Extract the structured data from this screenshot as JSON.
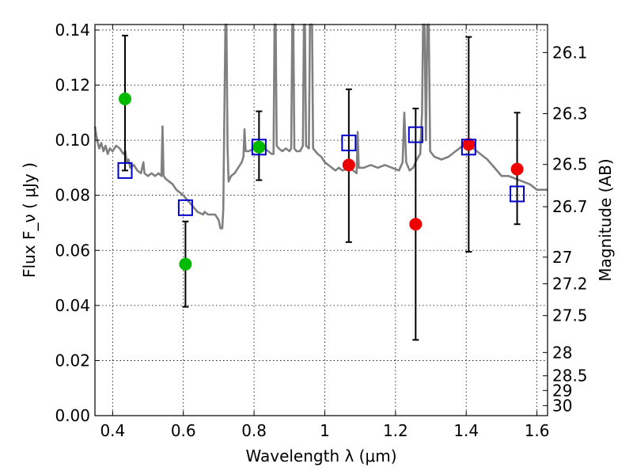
{
  "chart_data": {
    "type": "scatter",
    "title": "",
    "xlabel": "Wavelength  λ (μm)",
    "ylabel": "Flux  F_ν  ( μJy )",
    "ylabel_right": "Magnitude (AB)",
    "xlim": [
      0.35,
      1.63
    ],
    "ylim": [
      0.0,
      0.142
    ],
    "grid": true,
    "x_ticks": [
      0.4,
      0.6,
      0.8,
      1.0,
      1.2,
      1.4,
      1.6
    ],
    "x_tick_labels": [
      "0.4",
      "0.6",
      "0.8",
      "1",
      "1.2",
      "1.4",
      "1.6"
    ],
    "y_ticks": [
      0.0,
      0.02,
      0.04,
      0.06,
      0.08,
      0.1,
      0.12,
      0.14
    ],
    "y_tick_labels": [
      "0.00",
      "0.02",
      "0.04",
      "0.06",
      "0.08",
      "0.10",
      "0.12",
      "0.14"
    ],
    "right_tick_labels": [
      "26.1",
      "26.3",
      "26.5",
      "26.7",
      "27",
      "27.2",
      "27.5",
      "28",
      "28.5",
      "29",
      "30"
    ],
    "colors": {
      "green": "#00bb00",
      "red": "#ee0000",
      "blue_square": "#0000cc",
      "model": "#808080",
      "errorbar": "#000000"
    },
    "series": [
      {
        "marker": "circle",
        "color": "#00bb00",
        "points": [
          {
            "x": 0.435,
            "y": 0.115
          },
          {
            "x": 0.606,
            "y": 0.055
          },
          {
            "x": 0.814,
            "y": 0.0975
          }
        ]
      },
      {
        "marker": "circle",
        "color": "#ee0000",
        "points": [
          {
            "x": 1.068,
            "y": 0.091
          },
          {
            "x": 1.257,
            "y": 0.0695
          },
          {
            "x": 1.407,
            "y": 0.0985
          },
          {
            "x": 1.544,
            "y": 0.0895
          }
        ]
      },
      {
        "marker": "square",
        "color": "#0000cc",
        "points": [
          {
            "x": 0.435,
            "y": 0.089
          },
          {
            "x": 0.606,
            "y": 0.0755
          },
          {
            "x": 0.814,
            "y": 0.0975
          },
          {
            "x": 1.068,
            "y": 0.099
          },
          {
            "x": 1.257,
            "y": 0.102
          },
          {
            "x": 1.407,
            "y": 0.0975
          },
          {
            "x": 1.544,
            "y": 0.0805
          }
        ]
      }
    ],
    "error_bars": [
      {
        "x": 0.435,
        "low": 0.089,
        "high": 0.138
      },
      {
        "x": 0.606,
        "low": 0.0395,
        "high": 0.0705
      },
      {
        "x": 0.814,
        "low": 0.0855,
        "high": 0.1105
      },
      {
        "x": 1.068,
        "low": 0.063,
        "high": 0.1185
      },
      {
        "x": 1.257,
        "low": 0.0275,
        "high": 0.1115
      },
      {
        "x": 1.407,
        "low": 0.0595,
        "high": 0.1375
      },
      {
        "x": 1.544,
        "low": 0.0695,
        "high": 0.11
      }
    ],
    "model_spectrum": [
      [
        0.35,
        0.105
      ],
      [
        0.356,
        0.1
      ],
      [
        0.362,
        0.097
      ],
      [
        0.368,
        0.099
      ],
      [
        0.374,
        0.096
      ],
      [
        0.38,
        0.098
      ],
      [
        0.386,
        0.095
      ],
      [
        0.392,
        0.097
      ],
      [
        0.4,
        0.096
      ],
      [
        0.41,
        0.098
      ],
      [
        0.42,
        0.097
      ],
      [
        0.43,
        0.095
      ],
      [
        0.436,
        0.096
      ],
      [
        0.44,
        0.092
      ],
      [
        0.445,
        0.093
      ],
      [
        0.45,
        0.09
      ],
      [
        0.46,
        0.091
      ],
      [
        0.47,
        0.089
      ],
      [
        0.48,
        0.088
      ],
      [
        0.487,
        0.092
      ],
      [
        0.49,
        0.088
      ],
      [
        0.5,
        0.087
      ],
      [
        0.51,
        0.088
      ],
      [
        0.52,
        0.087
      ],
      [
        0.53,
        0.088
      ],
      [
        0.538,
        0.087
      ],
      [
        0.541,
        0.105
      ],
      [
        0.544,
        0.087
      ],
      [
        0.55,
        0.086
      ],
      [
        0.56,
        0.085
      ],
      [
        0.57,
        0.084
      ],
      [
        0.58,
        0.082
      ],
      [
        0.59,
        0.081
      ],
      [
        0.6,
        0.08
      ],
      [
        0.62,
        0.077
      ],
      [
        0.64,
        0.074
      ],
      [
        0.656,
        0.073
      ],
      [
        0.66,
        0.074
      ],
      [
        0.67,
        0.073
      ],
      [
        0.68,
        0.073
      ],
      [
        0.69,
        0.073
      ],
      [
        0.7,
        0.071
      ],
      [
        0.705,
        0.068
      ],
      [
        0.71,
        0.068
      ],
      [
        0.713,
        0.075
      ],
      [
        0.716,
        0.11
      ],
      [
        0.719,
        0.142
      ],
      [
        0.722,
        0.142
      ],
      [
        0.725,
        0.097
      ],
      [
        0.728,
        0.085
      ],
      [
        0.735,
        0.087
      ],
      [
        0.745,
        0.088
      ],
      [
        0.755,
        0.09
      ],
      [
        0.765,
        0.092
      ],
      [
        0.77,
        0.094
      ],
      [
        0.773,
        0.104
      ],
      [
        0.776,
        0.096
      ],
      [
        0.785,
        0.096
      ],
      [
        0.8,
        0.097
      ],
      [
        0.81,
        0.097
      ],
      [
        0.82,
        0.097
      ],
      [
        0.83,
        0.097
      ],
      [
        0.84,
        0.096
      ],
      [
        0.85,
        0.095
      ],
      [
        0.855,
        0.095
      ],
      [
        0.858,
        0.142
      ],
      [
        0.861,
        0.142
      ],
      [
        0.864,
        0.098
      ],
      [
        0.87,
        0.097
      ],
      [
        0.88,
        0.096
      ],
      [
        0.89,
        0.097
      ],
      [
        0.9,
        0.096
      ],
      [
        0.905,
        0.097
      ],
      [
        0.908,
        0.142
      ],
      [
        0.911,
        0.142
      ],
      [
        0.914,
        0.097
      ],
      [
        0.92,
        0.096
      ],
      [
        0.93,
        0.096
      ],
      [
        0.938,
        0.098
      ],
      [
        0.941,
        0.142
      ],
      [
        0.944,
        0.142
      ],
      [
        0.947,
        0.098
      ],
      [
        0.955,
        0.097
      ],
      [
        0.958,
        0.142
      ],
      [
        0.961,
        0.142
      ],
      [
        0.964,
        0.142
      ],
      [
        0.967,
        0.097
      ],
      [
        0.98,
        0.095
      ],
      [
        0.99,
        0.094
      ],
      [
        1.0,
        0.092
      ],
      [
        1.01,
        0.091
      ],
      [
        1.02,
        0.09
      ],
      [
        1.03,
        0.089
      ],
      [
        1.04,
        0.09
      ],
      [
        1.05,
        0.089
      ],
      [
        1.07,
        0.09
      ],
      [
        1.09,
        0.088
      ],
      [
        1.093,
        0.103
      ],
      [
        1.096,
        0.09
      ],
      [
        1.11,
        0.09
      ],
      [
        1.13,
        0.091
      ],
      [
        1.15,
        0.09
      ],
      [
        1.17,
        0.091
      ],
      [
        1.19,
        0.09
      ],
      [
        1.21,
        0.089
      ],
      [
        1.22,
        0.092
      ],
      [
        1.225,
        0.11
      ],
      [
        1.23,
        0.092
      ],
      [
        1.24,
        0.089
      ],
      [
        1.25,
        0.09
      ],
      [
        1.26,
        0.093
      ],
      [
        1.27,
        0.095
      ],
      [
        1.275,
        0.11
      ],
      [
        1.278,
        0.142
      ],
      [
        1.282,
        0.142
      ],
      [
        1.286,
        0.1
      ],
      [
        1.29,
        0.142
      ],
      [
        1.294,
        0.142
      ],
      [
        1.298,
        0.096
      ],
      [
        1.31,
        0.094
      ],
      [
        1.33,
        0.093
      ],
      [
        1.35,
        0.094
      ],
      [
        1.37,
        0.096
      ],
      [
        1.39,
        0.098
      ],
      [
        1.4,
        0.099
      ],
      [
        1.42,
        0.097
      ],
      [
        1.44,
        0.095
      ],
      [
        1.46,
        0.093
      ],
      [
        1.48,
        0.09
      ],
      [
        1.5,
        0.087
      ],
      [
        1.52,
        0.087
      ],
      [
        1.54,
        0.086
      ],
      [
        1.56,
        0.085
      ],
      [
        1.58,
        0.084
      ],
      [
        1.6,
        0.082
      ],
      [
        1.63,
        0.082
      ]
    ]
  }
}
